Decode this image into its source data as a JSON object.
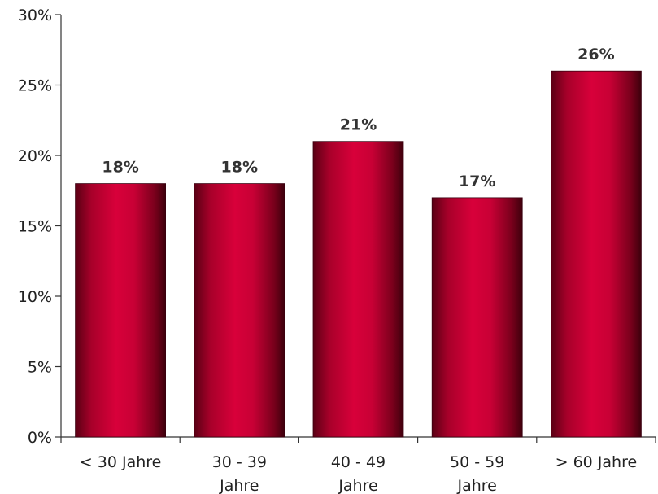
{
  "chart_data": {
    "type": "bar",
    "categories": [
      [
        "< 30 Jahre"
      ],
      [
        "30 - 39",
        "Jahre"
      ],
      [
        "40 - 49",
        "Jahre"
      ],
      [
        "50 - 59",
        "Jahre"
      ],
      [
        "> 60 Jahre"
      ]
    ],
    "values": [
      18,
      18,
      21,
      17,
      26
    ],
    "data_labels": [
      "18%",
      "18%",
      "21%",
      "17%",
      "26%"
    ],
    "yticks": [
      "0%",
      "5%",
      "10%",
      "15%",
      "20%",
      "25%",
      "30%"
    ],
    "ylim": [
      0,
      30
    ],
    "ystep": 5,
    "title": "",
    "xlabel": "",
    "ylabel": "",
    "grid": false,
    "colors": {
      "bar_center": "#d8003a",
      "bar_edge": "#5a0014",
      "axis": "#333333"
    }
  }
}
